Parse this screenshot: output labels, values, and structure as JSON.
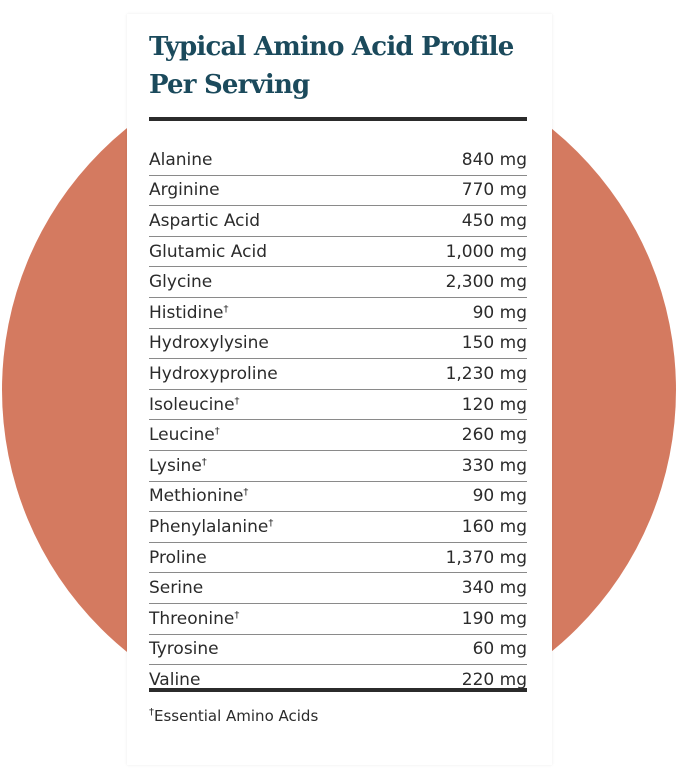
{
  "title": "Typical Amino Acid Profile Per Serving",
  "colors": {
    "circle": "#d47a60",
    "title": "#1b4a5c"
  },
  "rows": [
    {
      "name": "Alanine",
      "mark": "",
      "amount": "840 mg"
    },
    {
      "name": "Arginine",
      "mark": "",
      "amount": "770 mg"
    },
    {
      "name": "Aspartic Acid",
      "mark": "",
      "amount": "450 mg"
    },
    {
      "name": "Glutamic Acid",
      "mark": "",
      "amount": "1,000 mg"
    },
    {
      "name": "Glycine",
      "mark": "",
      "amount": "2,300 mg"
    },
    {
      "name": "Histidine",
      "mark": "†",
      "amount": "90 mg"
    },
    {
      "name": "Hydroxylysine",
      "mark": "",
      "amount": "150 mg"
    },
    {
      "name": "Hydroxyproline",
      "mark": "",
      "amount": "1,230 mg"
    },
    {
      "name": "Isoleucine",
      "mark": "†",
      "amount": "120 mg"
    },
    {
      "name": "Leucine",
      "mark": "†",
      "amount": "260 mg"
    },
    {
      "name": "Lysine",
      "mark": "†",
      "amount": "330 mg"
    },
    {
      "name": "Methionine",
      "mark": "†",
      "amount": "90 mg"
    },
    {
      "name": "Phenylalanine",
      "mark": "†",
      "amount": "160 mg"
    },
    {
      "name": "Proline",
      "mark": "",
      "amount": "1,370 mg"
    },
    {
      "name": "Serine",
      "mark": "",
      "amount": "340 mg"
    },
    {
      "name": "Threonine",
      "mark": "†",
      "amount": "190 mg"
    },
    {
      "name": "Tyrosine",
      "mark": "",
      "amount": "60 mg"
    },
    {
      "name": "Valine",
      "mark": "",
      "amount": "220 mg"
    }
  ],
  "footnote": {
    "mark": "†",
    "text": "Essential Amino Acids"
  }
}
